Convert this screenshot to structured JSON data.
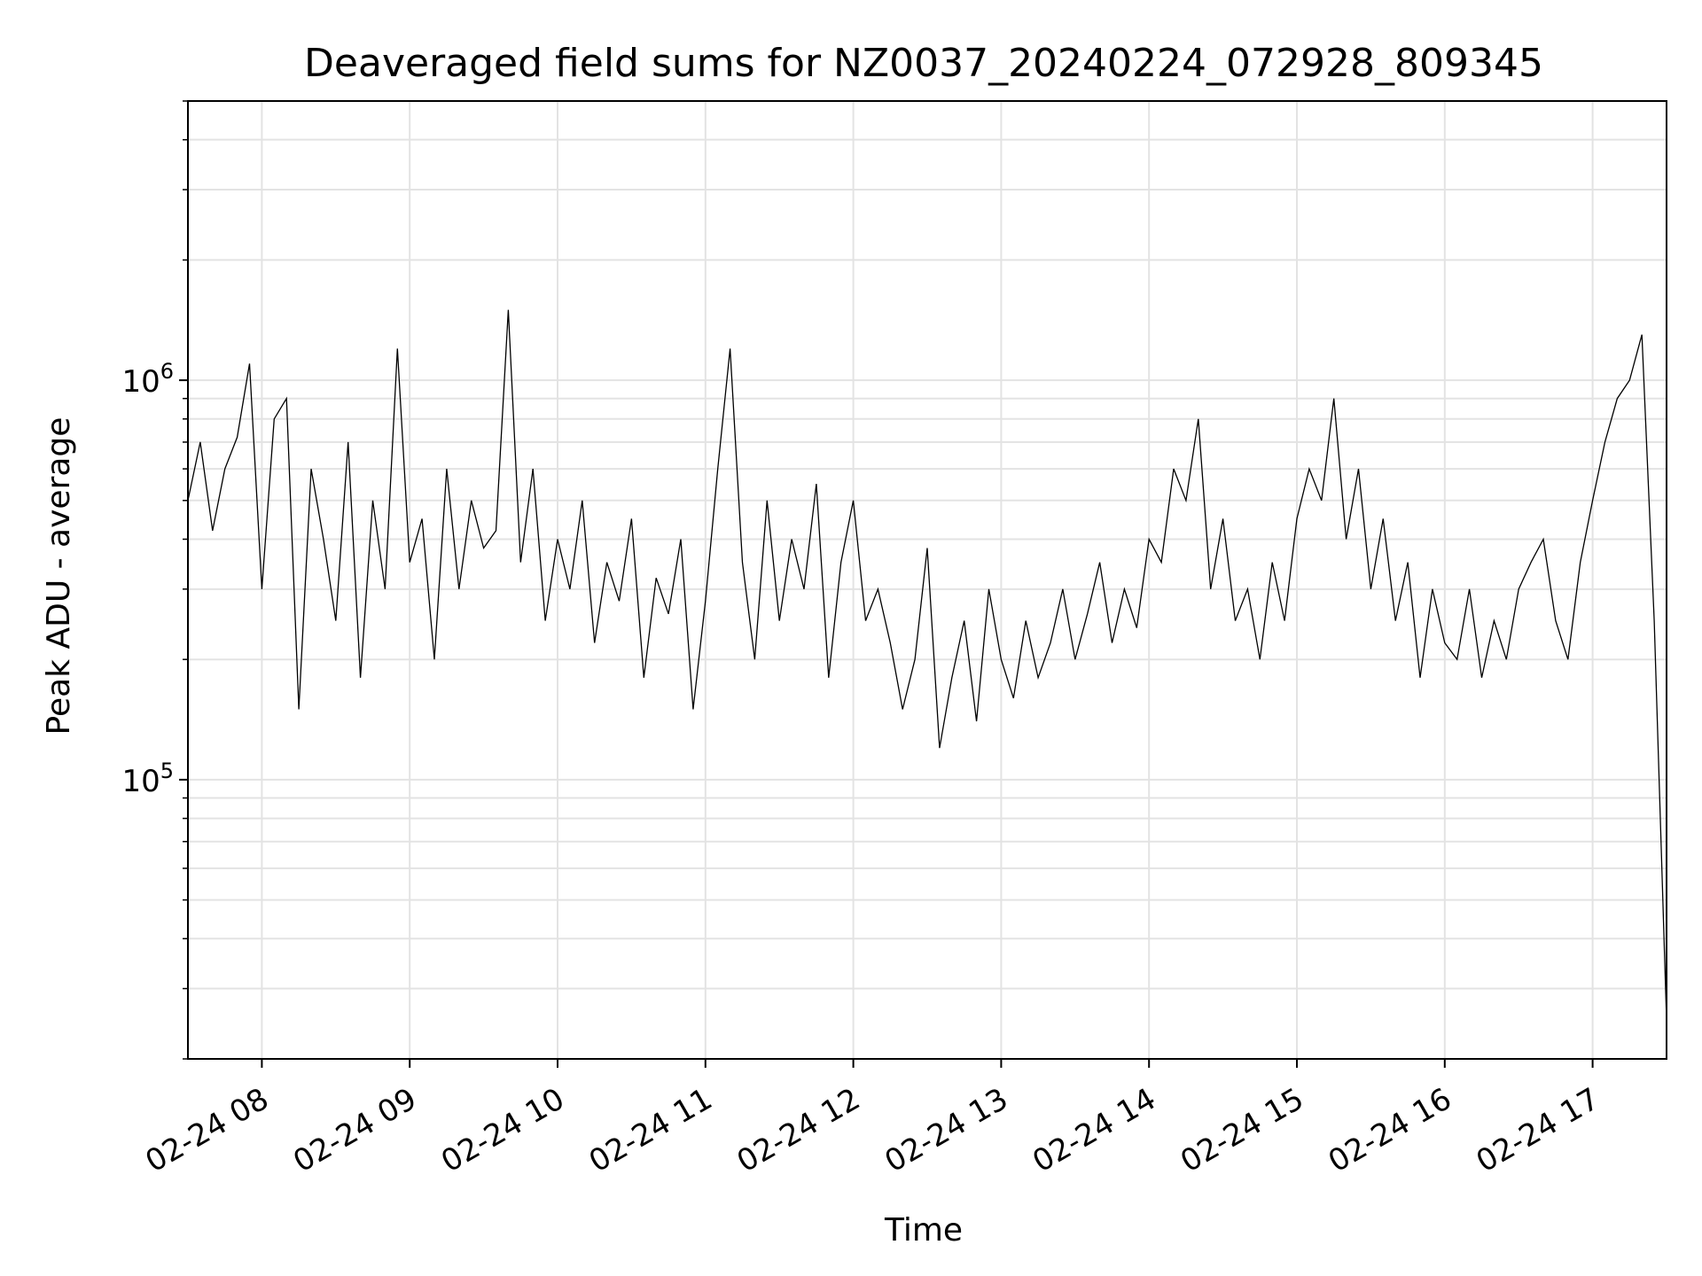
{
  "chart_data": {
    "type": "line",
    "title": "Deaveraged field sums for NZ0037_20240224_072928_809345",
    "xlabel": "Time",
    "ylabel": "Peak ADU - average",
    "yscale": "log",
    "ylim": [
      20000,
      5000000
    ],
    "xlim": [
      "2024-02-24 07:30",
      "2024-02-24 17:30"
    ],
    "grid": true,
    "line_color": "#000000",
    "x_ticks": [
      {
        "value": "2024-02-24 08:00",
        "label": "02-24 08"
      },
      {
        "value": "2024-02-24 09:00",
        "label": "02-24 09"
      },
      {
        "value": "2024-02-24 10:00",
        "label": "02-24 10"
      },
      {
        "value": "2024-02-24 11:00",
        "label": "02-24 11"
      },
      {
        "value": "2024-02-24 12:00",
        "label": "02-24 12"
      },
      {
        "value": "2024-02-24 13:00",
        "label": "02-24 13"
      },
      {
        "value": "2024-02-24 14:00",
        "label": "02-24 14"
      },
      {
        "value": "2024-02-24 15:00",
        "label": "02-24 15"
      },
      {
        "value": "2024-02-24 16:00",
        "label": "02-24 16"
      },
      {
        "value": "2024-02-24 17:00",
        "label": "02-24 17"
      }
    ],
    "y_ticks": [
      {
        "value": 100000,
        "base": "10",
        "exp": "5"
      },
      {
        "value": 1000000,
        "base": "10",
        "exp": "6"
      }
    ],
    "series": [
      {
        "x": [
          "2024-02-24 07:30",
          "2024-02-24 07:35",
          "2024-02-24 07:40",
          "2024-02-24 07:45",
          "2024-02-24 07:50",
          "2024-02-24 07:55",
          "2024-02-24 08:00",
          "2024-02-24 08:05",
          "2024-02-24 08:10",
          "2024-02-24 08:15",
          "2024-02-24 08:20",
          "2024-02-24 08:25",
          "2024-02-24 08:30",
          "2024-02-24 08:35",
          "2024-02-24 08:40",
          "2024-02-24 08:45",
          "2024-02-24 08:50",
          "2024-02-24 08:55",
          "2024-02-24 09:00",
          "2024-02-24 09:05",
          "2024-02-24 09:10",
          "2024-02-24 09:15",
          "2024-02-24 09:20",
          "2024-02-24 09:25",
          "2024-02-24 09:30",
          "2024-02-24 09:35",
          "2024-02-24 09:40",
          "2024-02-24 09:45",
          "2024-02-24 09:50",
          "2024-02-24 09:55",
          "2024-02-24 10:00",
          "2024-02-24 10:05",
          "2024-02-24 10:10",
          "2024-02-24 10:15",
          "2024-02-24 10:20",
          "2024-02-24 10:25",
          "2024-02-24 10:30",
          "2024-02-24 10:35",
          "2024-02-24 10:40",
          "2024-02-24 10:45",
          "2024-02-24 10:50",
          "2024-02-24 10:55",
          "2024-02-24 11:00",
          "2024-02-24 11:05",
          "2024-02-24 11:10",
          "2024-02-24 11:15",
          "2024-02-24 11:20",
          "2024-02-24 11:25",
          "2024-02-24 11:30",
          "2024-02-24 11:35",
          "2024-02-24 11:40",
          "2024-02-24 11:45",
          "2024-02-24 11:50",
          "2024-02-24 11:55",
          "2024-02-24 12:00",
          "2024-02-24 12:05",
          "2024-02-24 12:10",
          "2024-02-24 12:15",
          "2024-02-24 12:20",
          "2024-02-24 12:25",
          "2024-02-24 12:30",
          "2024-02-24 12:35",
          "2024-02-24 12:40",
          "2024-02-24 12:45",
          "2024-02-24 12:50",
          "2024-02-24 12:55",
          "2024-02-24 13:00",
          "2024-02-24 13:05",
          "2024-02-24 13:10",
          "2024-02-24 13:15",
          "2024-02-24 13:20",
          "2024-02-24 13:25",
          "2024-02-24 13:30",
          "2024-02-24 13:35",
          "2024-02-24 13:40",
          "2024-02-24 13:45",
          "2024-02-24 13:50",
          "2024-02-24 13:55",
          "2024-02-24 14:00",
          "2024-02-24 14:05",
          "2024-02-24 14:10",
          "2024-02-24 14:15",
          "2024-02-24 14:20",
          "2024-02-24 14:25",
          "2024-02-24 14:30",
          "2024-02-24 14:35",
          "2024-02-24 14:40",
          "2024-02-24 14:45",
          "2024-02-24 14:50",
          "2024-02-24 14:55",
          "2024-02-24 15:00",
          "2024-02-24 15:05",
          "2024-02-24 15:10",
          "2024-02-24 15:15",
          "2024-02-24 15:20",
          "2024-02-24 15:25",
          "2024-02-24 15:30",
          "2024-02-24 15:35",
          "2024-02-24 15:40",
          "2024-02-24 15:45",
          "2024-02-24 15:50",
          "2024-02-24 15:55",
          "2024-02-24 16:00",
          "2024-02-24 16:05",
          "2024-02-24 16:10",
          "2024-02-24 16:15",
          "2024-02-24 16:20",
          "2024-02-24 16:25",
          "2024-02-24 16:30",
          "2024-02-24 16:35",
          "2024-02-24 16:40",
          "2024-02-24 16:45",
          "2024-02-24 16:50",
          "2024-02-24 16:55",
          "2024-02-24 17:00",
          "2024-02-24 17:05",
          "2024-02-24 17:10",
          "2024-02-24 17:15",
          "2024-02-24 17:20",
          "2024-02-24 17:25",
          "2024-02-24 17:30"
        ],
        "y": [
          500000,
          700000,
          420000,
          600000,
          720000,
          1100000,
          300000,
          800000,
          900000,
          150000,
          600000,
          400000,
          250000,
          700000,
          180000,
          500000,
          300000,
          1200000,
          350000,
          450000,
          200000,
          600000,
          300000,
          500000,
          380000,
          420000,
          1500000,
          350000,
          600000,
          250000,
          400000,
          300000,
          500000,
          220000,
          350000,
          280000,
          450000,
          180000,
          320000,
          260000,
          400000,
          150000,
          280000,
          600000,
          1200000,
          350000,
          200000,
          500000,
          250000,
          400000,
          300000,
          550000,
          180000,
          350000,
          500000,
          250000,
          300000,
          220000,
          150000,
          200000,
          380000,
          120000,
          180000,
          250000,
          140000,
          300000,
          200000,
          160000,
          250000,
          180000,
          220000,
          300000,
          200000,
          260000,
          350000,
          220000,
          300000,
          240000,
          400000,
          350000,
          600000,
          500000,
          800000,
          300000,
          450000,
          250000,
          300000,
          200000,
          350000,
          250000,
          450000,
          600000,
          500000,
          900000,
          400000,
          600000,
          300000,
          450000,
          250000,
          350000,
          180000,
          300000,
          220000,
          200000,
          300000,
          180000,
          250000,
          200000,
          300000,
          350000,
          400000,
          250000,
          200000,
          350000,
          500000,
          700000,
          900000,
          1000000,
          1300000,
          250000,
          25000
        ]
      }
    ]
  }
}
